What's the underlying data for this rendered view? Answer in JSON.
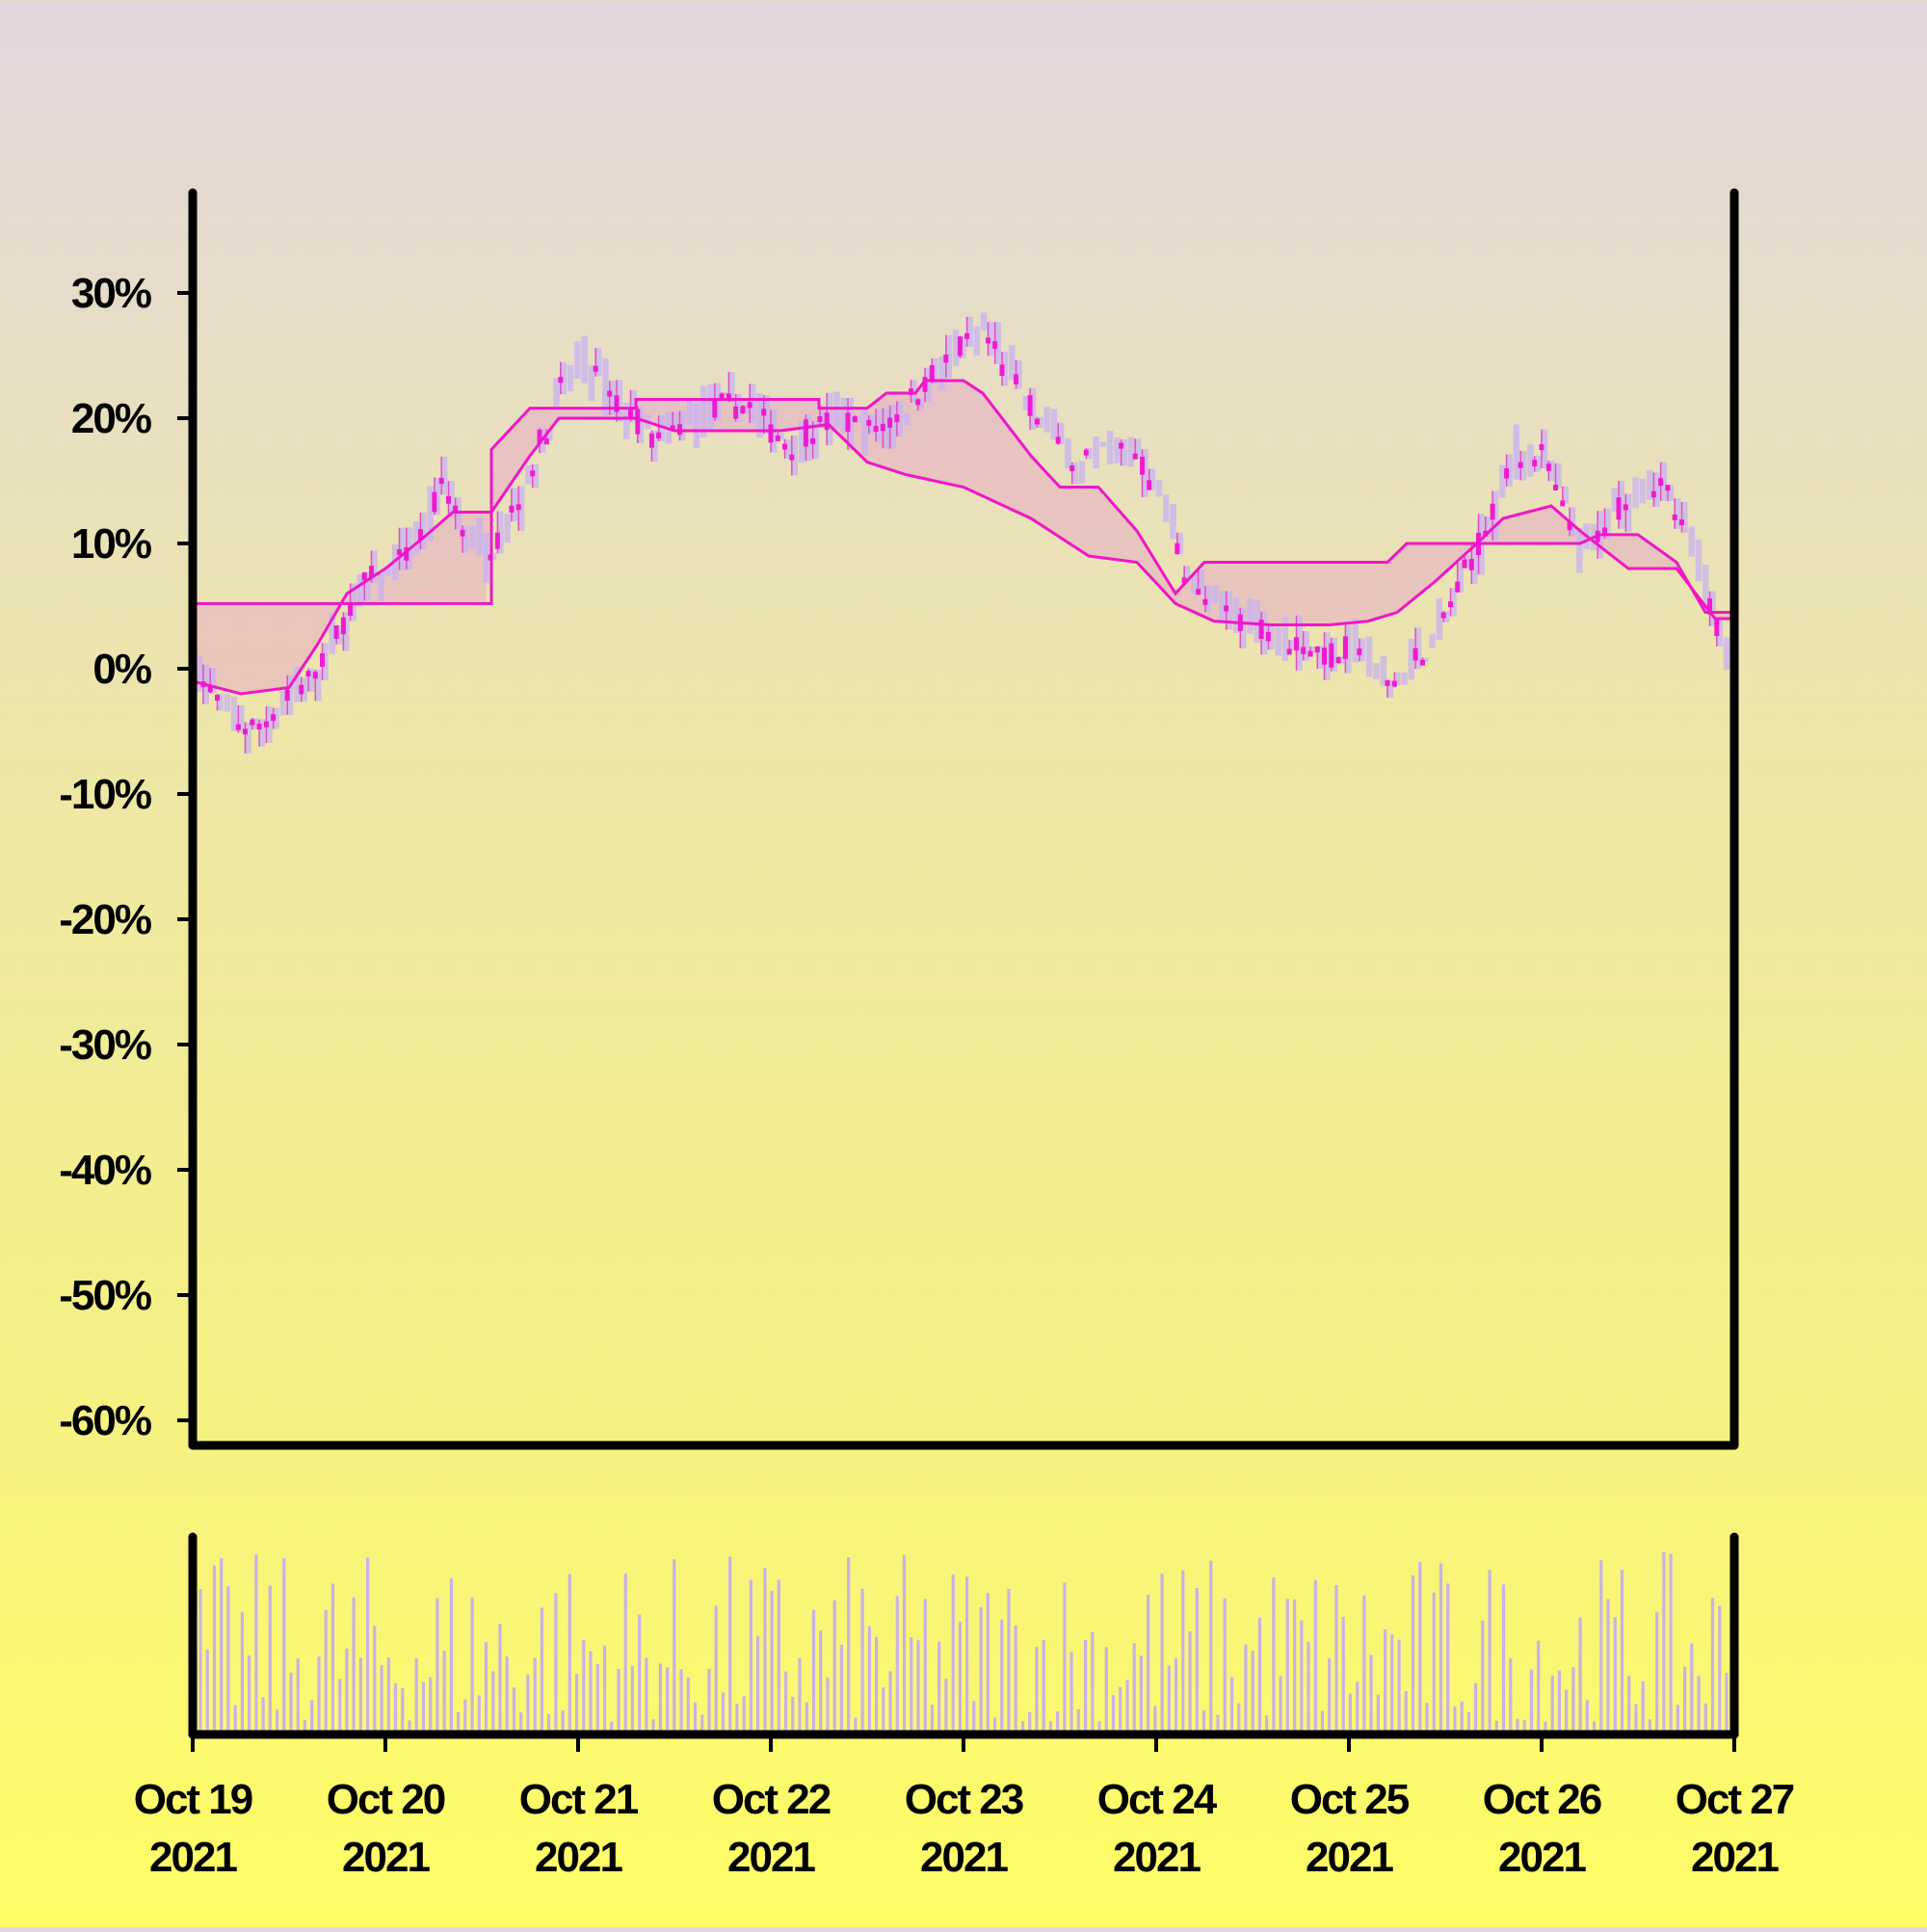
{
  "chart_data": {
    "type": "candlestick",
    "title": "",
    "xlabel": "",
    "ylabel": "",
    "ylim": [
      -62,
      38
    ],
    "yticks": [
      {
        "value": 30,
        "label": "30%"
      },
      {
        "value": 20,
        "label": "20%"
      },
      {
        "value": 10,
        "label": "10%"
      },
      {
        "value": 0,
        "label": "0%"
      },
      {
        "value": -10,
        "label": "-10%"
      },
      {
        "value": -20,
        "label": "-20%"
      },
      {
        "value": -30,
        "label": "-30%"
      },
      {
        "value": -40,
        "label": "-40%"
      },
      {
        "value": -50,
        "label": "-50%"
      },
      {
        "value": -60,
        "label": "-60%"
      }
    ],
    "xlim": [
      0,
      8
    ],
    "xticks": [
      {
        "value": 0,
        "line1": "Oct 19",
        "line2": "2021"
      },
      {
        "value": 1,
        "line1": "Oct 20",
        "line2": "2021"
      },
      {
        "value": 2,
        "line1": "Oct 21",
        "line2": "2021"
      },
      {
        "value": 3,
        "line1": "Oct 22",
        "line2": "2021"
      },
      {
        "value": 4,
        "line1": "Oct 23",
        "line2": "2021"
      },
      {
        "value": 5,
        "line1": "Oct 24",
        "line2": "2021"
      },
      {
        "value": 6,
        "line1": "Oct 25",
        "line2": "2021"
      },
      {
        "value": 7,
        "line1": "Oct 26",
        "line2": "2021"
      },
      {
        "value": 8,
        "line1": "Oct 27",
        "line2": "2021"
      }
    ],
    "close_path": [
      [
        0.0,
        0
      ],
      [
        0.15,
        -3
      ],
      [
        0.3,
        -5
      ],
      [
        0.45,
        -3
      ],
      [
        0.6,
        -1
      ],
      [
        0.75,
        3
      ],
      [
        0.9,
        7
      ],
      [
        1.05,
        8
      ],
      [
        1.2,
        11
      ],
      [
        1.3,
        15
      ],
      [
        1.4,
        11
      ],
      [
        1.5,
        9
      ],
      [
        1.6,
        11
      ],
      [
        1.7,
        14
      ],
      [
        1.8,
        18
      ],
      [
        1.9,
        22
      ],
      [
        2.0,
        25
      ],
      [
        2.1,
        23
      ],
      [
        2.2,
        21
      ],
      [
        2.3,
        20
      ],
      [
        2.4,
        18
      ],
      [
        2.5,
        19
      ],
      [
        2.6,
        20
      ],
      [
        2.75,
        21
      ],
      [
        2.9,
        21
      ],
      [
        3.0,
        19
      ],
      [
        3.1,
        18
      ],
      [
        3.2,
        19
      ],
      [
        3.35,
        20
      ],
      [
        3.5,
        19
      ],
      [
        3.65,
        20
      ],
      [
        3.8,
        23
      ],
      [
        3.95,
        25
      ],
      [
        4.1,
        27
      ],
      [
        4.2,
        24
      ],
      [
        4.35,
        21
      ],
      [
        4.5,
        18
      ],
      [
        4.6,
        16
      ],
      [
        4.75,
        18
      ],
      [
        4.9,
        17
      ],
      [
        5.0,
        14
      ],
      [
        5.1,
        10
      ],
      [
        5.2,
        6
      ],
      [
        5.3,
        5
      ],
      [
        5.45,
        4
      ],
      [
        5.6,
        3
      ],
      [
        5.75,
        2
      ],
      [
        5.9,
        1
      ],
      [
        6.05,
        2
      ],
      [
        6.15,
        -1
      ],
      [
        6.25,
        -1
      ],
      [
        6.35,
        1
      ],
      [
        6.45,
        3
      ],
      [
        6.55,
        6
      ],
      [
        6.7,
        11
      ],
      [
        6.85,
        17
      ],
      [
        7.0,
        17
      ],
      [
        7.1,
        13
      ],
      [
        7.2,
        9
      ],
      [
        7.3,
        11
      ],
      [
        7.45,
        14
      ],
      [
        7.55,
        15
      ],
      [
        7.65,
        14
      ],
      [
        7.75,
        10
      ],
      [
        7.85,
        6
      ],
      [
        7.95,
        2
      ],
      [
        8.0,
        5
      ]
    ],
    "upper_band": [
      [
        0.0,
        5.2
      ],
      [
        1.55,
        5.2
      ],
      [
        1.55,
        17.5
      ],
      [
        1.75,
        20.8
      ],
      [
        2.0,
        20.8
      ],
      [
        2.3,
        20.8
      ],
      [
        2.3,
        21.5
      ],
      [
        3.25,
        21.5
      ],
      [
        3.25,
        20.8
      ],
      [
        3.5,
        20.8
      ],
      [
        3.6,
        22
      ],
      [
        3.75,
        22
      ],
      [
        3.8,
        23
      ],
      [
        4.0,
        23
      ],
      [
        4.1,
        22
      ],
      [
        4.35,
        17
      ],
      [
        4.5,
        14.5
      ],
      [
        4.7,
        14.5
      ],
      [
        4.9,
        11
      ],
      [
        5.1,
        6
      ],
      [
        5.25,
        8.5
      ],
      [
        6.2,
        8.5
      ],
      [
        6.3,
        10
      ],
      [
        7.2,
        10
      ],
      [
        7.3,
        10.7
      ],
      [
        7.5,
        10.7
      ],
      [
        7.7,
        8.5
      ],
      [
        7.85,
        4.5
      ],
      [
        8.0,
        4.5
      ]
    ],
    "lower_band": [
      [
        0.0,
        -1
      ],
      [
        0.25,
        -2
      ],
      [
        0.5,
        -1.5
      ],
      [
        0.65,
        2
      ],
      [
        0.8,
        6
      ],
      [
        1.0,
        8
      ],
      [
        1.2,
        10.5
      ],
      [
        1.35,
        12.5
      ],
      [
        1.55,
        12.5
      ],
      [
        1.75,
        17
      ],
      [
        1.9,
        20
      ],
      [
        2.05,
        20
      ],
      [
        2.3,
        20
      ],
      [
        2.5,
        19
      ],
      [
        2.9,
        19
      ],
      [
        3.05,
        19
      ],
      [
        3.3,
        19.5
      ],
      [
        3.5,
        16.5
      ],
      [
        3.7,
        15.5
      ],
      [
        4.0,
        14.5
      ],
      [
        4.35,
        12
      ],
      [
        4.5,
        10.5
      ],
      [
        4.65,
        9
      ],
      [
        4.9,
        8.5
      ],
      [
        5.1,
        5.2
      ],
      [
        5.3,
        3.8
      ],
      [
        5.6,
        3.5
      ],
      [
        5.9,
        3.5
      ],
      [
        6.1,
        3.8
      ],
      [
        6.25,
        4.5
      ],
      [
        6.45,
        7
      ],
      [
        6.65,
        9.8
      ],
      [
        6.8,
        12
      ],
      [
        7.05,
        13
      ],
      [
        7.2,
        11
      ],
      [
        7.45,
        8
      ],
      [
        7.7,
        8
      ],
      [
        7.9,
        4
      ],
      [
        8.0,
        4
      ]
    ],
    "colors": {
      "line": "#f016c8",
      "candle": "#f01ad2",
      "wick": "#e04cc8",
      "shadow": "#c8b2f2",
      "band_fill": "#e6a0c8",
      "volume": "#c8b2e6",
      "axis": "#000000"
    }
  }
}
